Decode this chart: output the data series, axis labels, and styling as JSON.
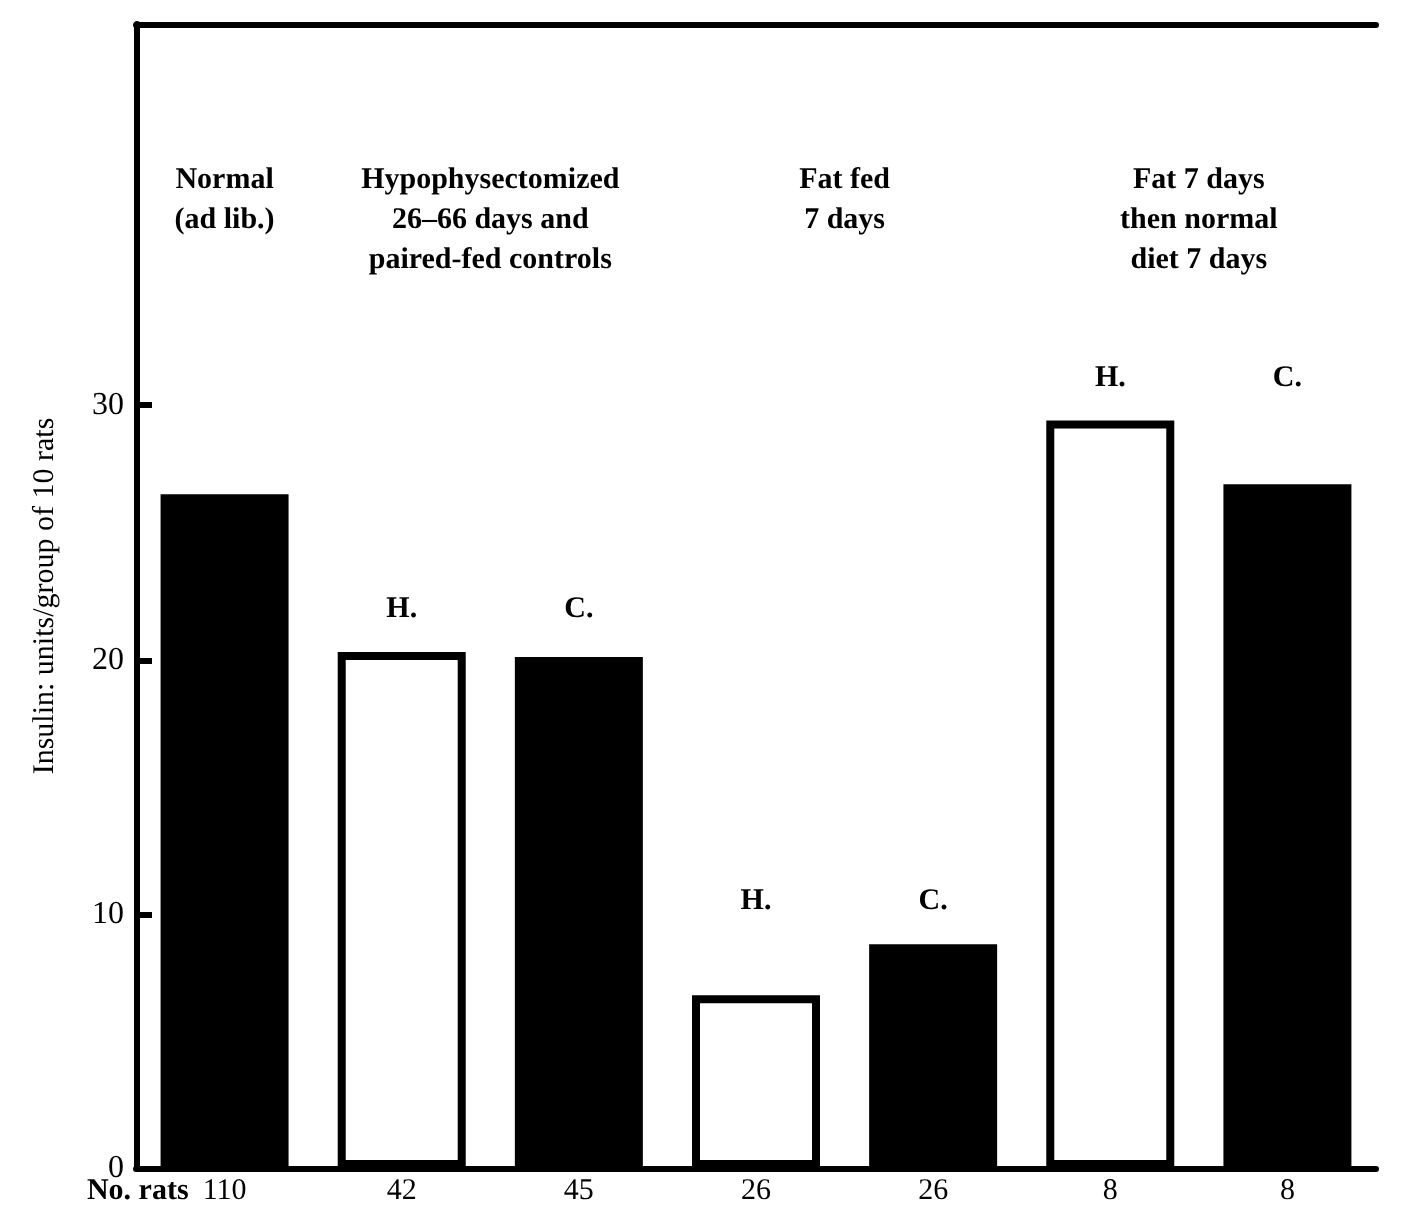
{
  "chart_data": {
    "type": "bar",
    "ylabel": "Insulin: units/group of 10 rats",
    "xlabel": "No. rats",
    "categories": [
      "110",
      "42",
      "45",
      "26",
      "26",
      "8",
      "8"
    ],
    "values": [
      26.5,
      20.3,
      20.1,
      6.8,
      8.8,
      29.4,
      26.9
    ],
    "colors": [
      "#000000",
      "#ffffff",
      "#000000",
      "#ffffff",
      "#000000",
      "#ffffff",
      "#000000"
    ],
    "ylim": [
      0,
      45
    ],
    "yticks": [
      0,
      10,
      20,
      30
    ],
    "annotations": [
      "Normal\n(ad lib.)",
      "Hypophysectomized\n26–66 days and\npaired-fed controls",
      "Fat fed\n7 days",
      "Fat 7 days\nthen normal\ndiet 7 days",
      "H.",
      "C.",
      "H.",
      "C.",
      "H.",
      "C."
    ]
  }
}
